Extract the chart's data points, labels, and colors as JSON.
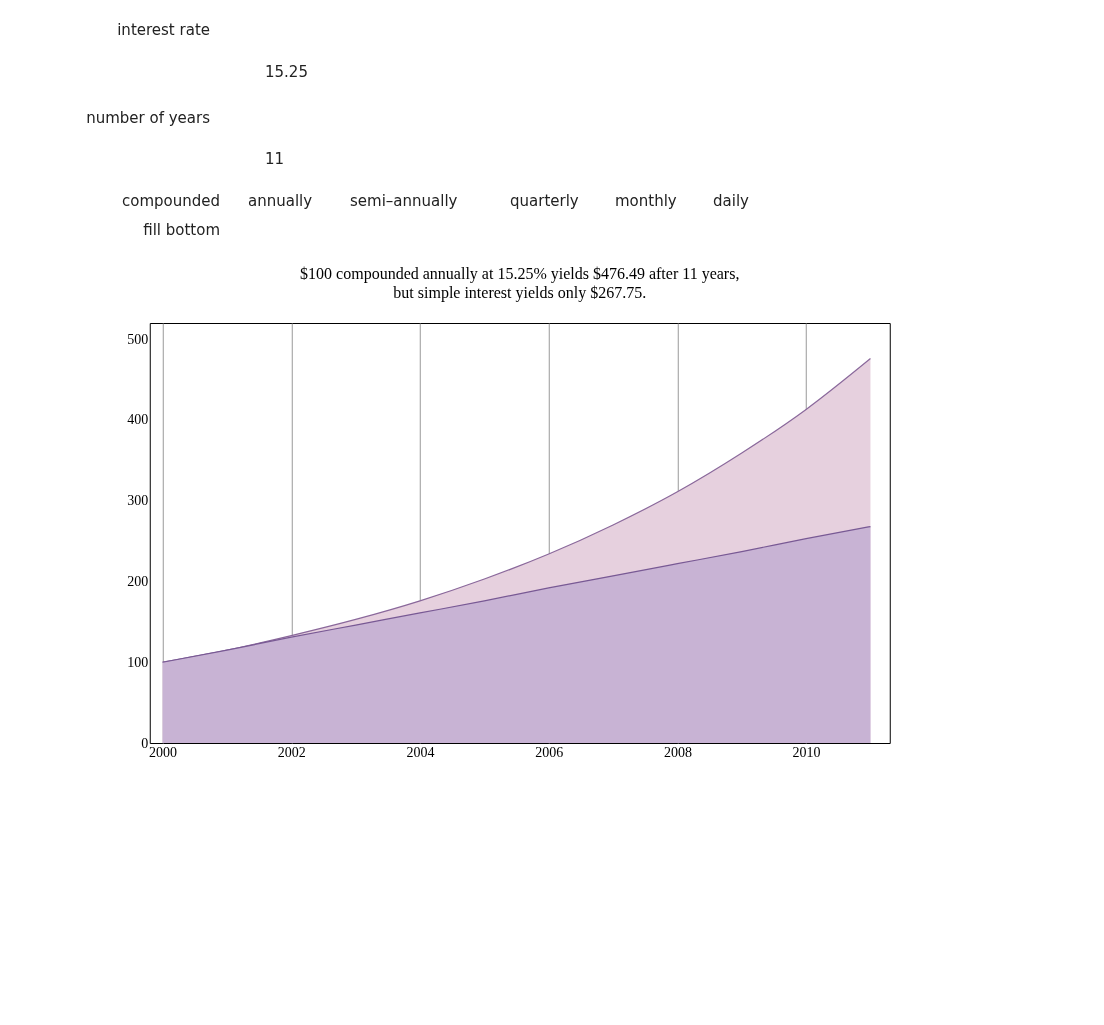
{
  "chart_data": {
    "type": "area",
    "title": "$100 compounded annually at 15.25% yields $476.49 after 11 years,",
    "subtitle": "but simple interest yields only $267.75.",
    "x": [
      2000,
      2001,
      2002,
      2003,
      2004,
      2005,
      2006,
      2007,
      2008,
      2009,
      2010,
      2011
    ],
    "series": [
      {
        "color": "#e6d0de",
        "values": [
          100,
          115,
          133,
          153,
          176,
          203,
          234,
          270,
          311,
          359,
          413,
          476
        ]
      },
      {
        "color": "#c8b3d4",
        "values": [
          100,
          115,
          131,
          146,
          161,
          176,
          192,
          207,
          222,
          237,
          253,
          268
        ]
      }
    ],
    "xlim": [
      1999.8,
      2011.3
    ],
    "xticks": [
      2000,
      2002,
      2004,
      2006,
      2008,
      2010
    ],
    "ylim": [
      0,
      520
    ],
    "yticks": [
      0,
      100,
      200,
      300,
      400,
      500
    ],
    "grid": "x",
    "annotations": [
      "interest rate",
      "15.25",
      "number of years",
      "11",
      "compounded",
      "annually",
      "semi–annually",
      "quarterly",
      "monthly",
      "daily",
      "fill bottom"
    ]
  }
}
